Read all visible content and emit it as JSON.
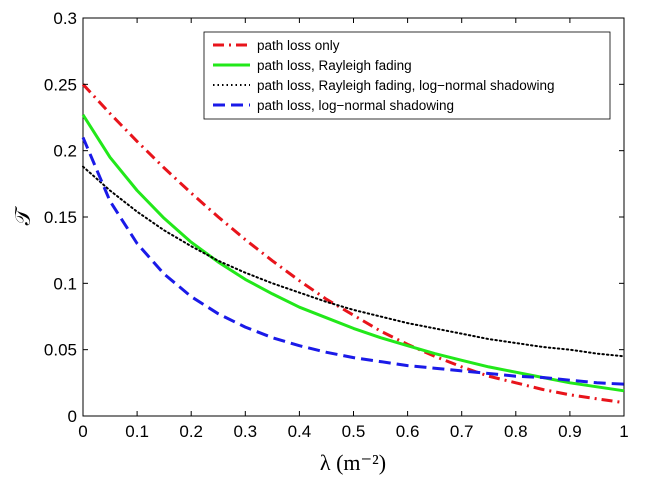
{
  "chart_data": {
    "type": "line",
    "xlabel": "λ (m⁻²)",
    "ylabel": "𝒯",
    "xlim": [
      0,
      1
    ],
    "ylim": [
      0,
      0.3
    ],
    "x_ticks": [
      "0",
      "0.1",
      "0.2",
      "0.3",
      "0.4",
      "0.5",
      "0.6",
      "0.7",
      "0.8",
      "0.9",
      "1"
    ],
    "y_ticks": [
      "0",
      "0.05",
      "0.1",
      "0.15",
      "0.2",
      "0.25",
      "0.3"
    ],
    "grid": false,
    "legend_position": "top-right",
    "x": [
      0,
      0.05,
      0.1,
      0.15,
      0.2,
      0.25,
      0.3,
      0.35,
      0.4,
      0.45,
      0.5,
      0.55,
      0.6,
      0.65,
      0.7,
      0.75,
      0.8,
      0.85,
      0.9,
      0.95,
      1.0
    ],
    "series": [
      {
        "name": "path loss only",
        "color": "#e8141b",
        "dash": "dashdot",
        "values": [
          0.25,
          0.228,
          0.207,
          0.187,
          0.168,
          0.15,
          0.133,
          0.117,
          0.102,
          0.088,
          0.076,
          0.064,
          0.054,
          0.045,
          0.037,
          0.03,
          0.025,
          0.02,
          0.016,
          0.013,
          0.01
        ]
      },
      {
        "name": "path loss, Rayleigh fading",
        "color": "#22e81a",
        "dash": "solid",
        "values": [
          0.227,
          0.195,
          0.17,
          0.149,
          0.131,
          0.116,
          0.103,
          0.092,
          0.082,
          0.074,
          0.066,
          0.059,
          0.053,
          0.047,
          0.042,
          0.037,
          0.033,
          0.029,
          0.025,
          0.022,
          0.019
        ]
      },
      {
        "name": "path loss, Rayleigh fading, log−normal shadowing",
        "color": "#000000",
        "dash": "dotted",
        "values": [
          0.188,
          0.17,
          0.154,
          0.14,
          0.128,
          0.117,
          0.108,
          0.1,
          0.093,
          0.086,
          0.08,
          0.075,
          0.07,
          0.066,
          0.062,
          0.058,
          0.055,
          0.052,
          0.05,
          0.047,
          0.045
        ]
      },
      {
        "name": "path loss, log−normal shadowing",
        "color": "#1a1ae8",
        "dash": "dashed",
        "values": [
          0.21,
          0.162,
          0.13,
          0.107,
          0.09,
          0.077,
          0.067,
          0.059,
          0.053,
          0.048,
          0.044,
          0.041,
          0.038,
          0.036,
          0.034,
          0.032,
          0.03,
          0.029,
          0.027,
          0.025,
          0.024
        ]
      }
    ]
  }
}
